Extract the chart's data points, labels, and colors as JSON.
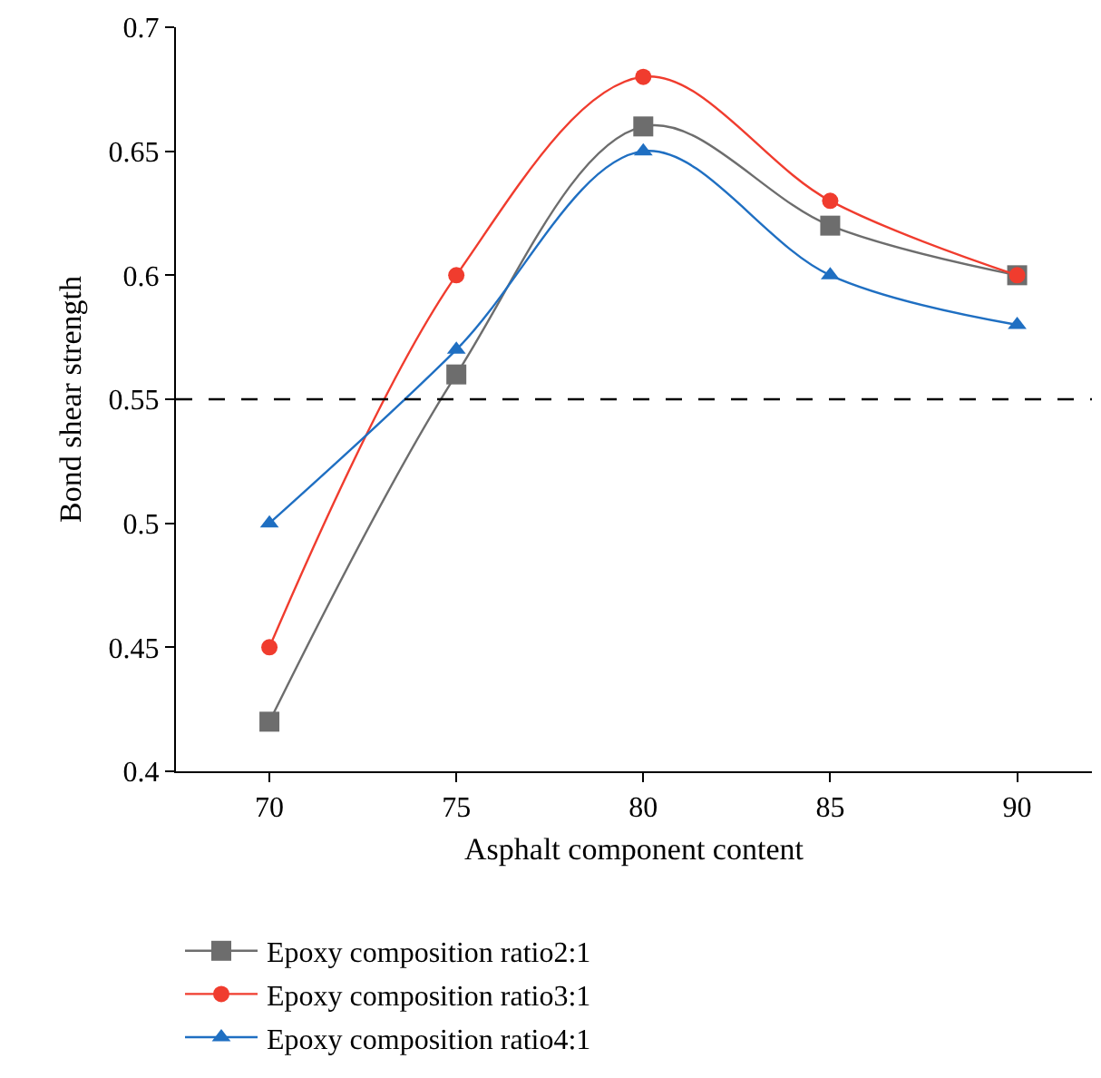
{
  "chart_data": {
    "type": "line",
    "xlabel": "Asphalt component content",
    "ylabel": "Bond shear strength",
    "x": [
      70,
      75,
      80,
      85,
      90
    ],
    "series": [
      {
        "name": "Epoxy composition ratio2:1",
        "color": "#6d6d6d",
        "marker": "square",
        "values": [
          0.42,
          0.56,
          0.66,
          0.62,
          0.6
        ]
      },
      {
        "name": "Epoxy composition ratio3:1",
        "color": "#f03c2e",
        "marker": "circle",
        "values": [
          0.45,
          0.6,
          0.68,
          0.63,
          0.6
        ]
      },
      {
        "name": "Epoxy composition ratio4:1",
        "color": "#1f6fc2",
        "marker": "triangle",
        "values": [
          0.5,
          0.57,
          0.65,
          0.6,
          0.58
        ]
      }
    ],
    "xlim": [
      67.5,
      92
    ],
    "xticks": [
      70,
      75,
      80,
      85,
      90
    ],
    "ylim": [
      0.4,
      0.7
    ],
    "yticks": [
      0.4,
      0.45,
      0.5,
      0.55,
      0.6,
      0.65,
      0.7
    ],
    "ref_lines": [
      {
        "axis": "y",
        "value": 0.55,
        "color": "#000000",
        "line_style": "dashed"
      }
    ],
    "legend": "bottom",
    "line_style": "solid"
  }
}
